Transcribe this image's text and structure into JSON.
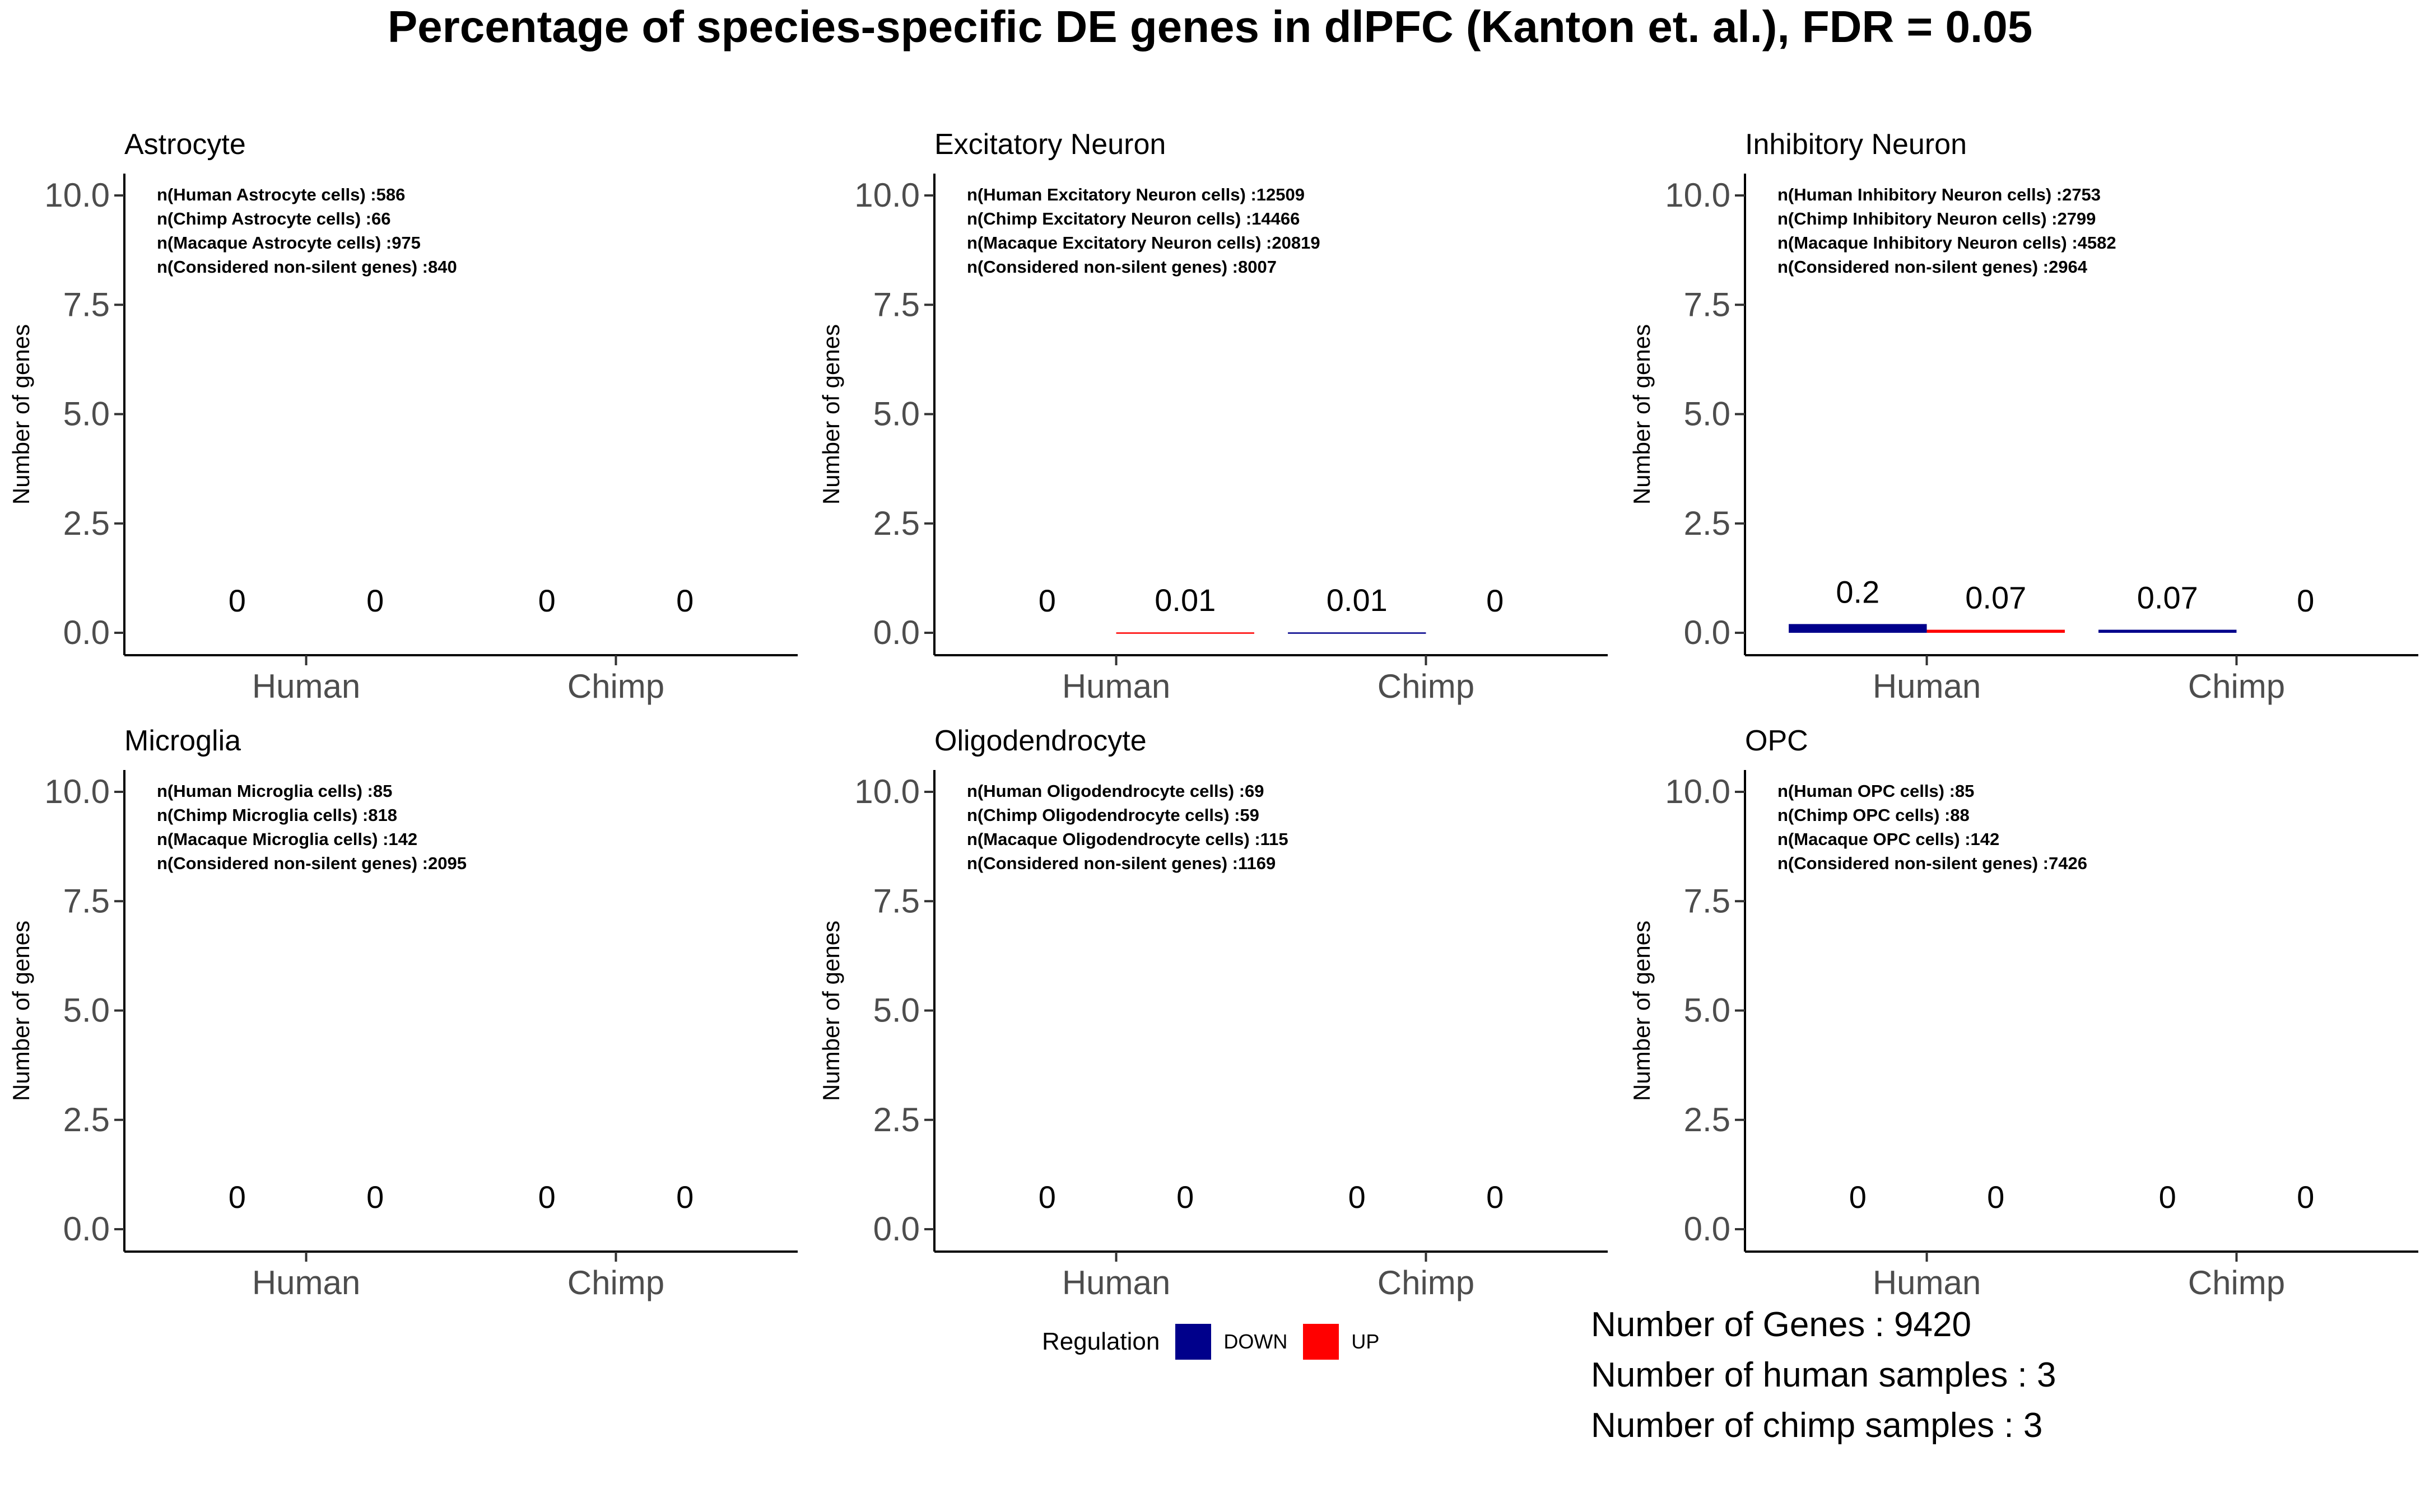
{
  "title": "Percentage of species-specific DE genes in dlPFC (Kanton et. al.), FDR = 0.05",
  "footer": {
    "lines": [
      "Number of Genes : 9420",
      "Number of human samples : 3",
      "Number of chimp samples : 3"
    ]
  },
  "legend": {
    "title": "Regulation",
    "items": [
      {
        "label": "DOWN",
        "color": "#00008B"
      },
      {
        "label": "UP",
        "color": "#FF0000"
      }
    ]
  },
  "chart_data": [
    {
      "type": "bar",
      "title": "Astrocyte",
      "ylabel": "Number of genes",
      "ylim": [
        0,
        10.5
      ],
      "yticks": [
        "0.0",
        "2.5",
        "5.0",
        "7.5",
        "10.0"
      ],
      "categories": [
        "Human",
        "Chimp"
      ],
      "series": [
        {
          "name": "DOWN",
          "values": [
            0,
            0
          ],
          "labels": [
            "0",
            "0"
          ]
        },
        {
          "name": "UP",
          "values": [
            0,
            0
          ],
          "labels": [
            "0",
            "0"
          ]
        }
      ],
      "annotations": [
        "n(Human Astrocyte cells) :586",
        "n(Chimp Astrocyte cells)  :66",
        "n(Macaque Astrocyte cells)  :975",
        "n(Considered non-silent genes) :840"
      ]
    },
    {
      "type": "bar",
      "title": "Excitatory Neuron",
      "ylabel": "Number of genes",
      "ylim": [
        0,
        10.5
      ],
      "yticks": [
        "0.0",
        "2.5",
        "5.0",
        "7.5",
        "10.0"
      ],
      "categories": [
        "Human",
        "Chimp"
      ],
      "series": [
        {
          "name": "DOWN",
          "values": [
            0,
            0.01
          ],
          "labels": [
            "0",
            "0.01"
          ]
        },
        {
          "name": "UP",
          "values": [
            0.01,
            0
          ],
          "labels": [
            "0.01",
            "0"
          ]
        }
      ],
      "annotations": [
        "n(Human Excitatory Neuron cells) :12509",
        "n(Chimp Excitatory Neuron cells)  :14466",
        "n(Macaque Excitatory Neuron cells)  :20819",
        "n(Considered non-silent genes) :8007"
      ]
    },
    {
      "type": "bar",
      "title": "Inhibitory Neuron",
      "ylabel": "Number of genes",
      "ylim": [
        0,
        10.5
      ],
      "yticks": [
        "0.0",
        "2.5",
        "5.0",
        "7.5",
        "10.0"
      ],
      "categories": [
        "Human",
        "Chimp"
      ],
      "series": [
        {
          "name": "DOWN",
          "values": [
            0.2,
            0.07
          ],
          "labels": [
            "0.2",
            "0.07"
          ]
        },
        {
          "name": "UP",
          "values": [
            0.07,
            0
          ],
          "labels": [
            "0.07",
            "0"
          ]
        }
      ],
      "annotations": [
        "n(Human Inhibitory Neuron cells) :2753",
        "n(Chimp Inhibitory Neuron cells)  :2799",
        "n(Macaque Inhibitory Neuron cells)  :4582",
        "n(Considered non-silent genes) :2964"
      ]
    },
    {
      "type": "bar",
      "title": "Microglia",
      "ylabel": "Number of genes",
      "ylim": [
        0,
        10.5
      ],
      "yticks": [
        "0.0",
        "2.5",
        "5.0",
        "7.5",
        "10.0"
      ],
      "categories": [
        "Human",
        "Chimp"
      ],
      "series": [
        {
          "name": "DOWN",
          "values": [
            0,
            0
          ],
          "labels": [
            "0",
            "0"
          ]
        },
        {
          "name": "UP",
          "values": [
            0,
            0
          ],
          "labels": [
            "0",
            "0"
          ]
        }
      ],
      "annotations": [
        "n(Human Microglia cells) :85",
        "n(Chimp Microglia cells)  :818",
        "n(Macaque Microglia cells)  :142",
        "n(Considered non-silent genes) :2095"
      ]
    },
    {
      "type": "bar",
      "title": "Oligodendrocyte",
      "ylabel": "Number of genes",
      "ylim": [
        0,
        10.5
      ],
      "yticks": [
        "0.0",
        "2.5",
        "5.0",
        "7.5",
        "10.0"
      ],
      "categories": [
        "Human",
        "Chimp"
      ],
      "series": [
        {
          "name": "DOWN",
          "values": [
            0,
            0
          ],
          "labels": [
            "0",
            "0"
          ]
        },
        {
          "name": "UP",
          "values": [
            0,
            0
          ],
          "labels": [
            "0",
            "0"
          ]
        }
      ],
      "annotations": [
        "n(Human Oligodendrocyte cells) :69",
        "n(Chimp Oligodendrocyte cells)  :59",
        "n(Macaque Oligodendrocyte cells)  :115",
        "n(Considered non-silent genes) :1169"
      ]
    },
    {
      "type": "bar",
      "title": "OPC",
      "ylabel": "Number of genes",
      "ylim": [
        0,
        10.5
      ],
      "yticks": [
        "0.0",
        "2.5",
        "5.0",
        "7.5",
        "10.0"
      ],
      "categories": [
        "Human",
        "Chimp"
      ],
      "series": [
        {
          "name": "DOWN",
          "values": [
            0,
            0
          ],
          "labels": [
            "0",
            "0"
          ]
        },
        {
          "name": "UP",
          "values": [
            0,
            0
          ],
          "labels": [
            "0",
            "0"
          ]
        }
      ],
      "annotations": [
        "n(Human OPC cells) :85",
        "n(Chimp OPC cells)  :88",
        "n(Macaque OPC cells)  :142",
        "n(Considered non-silent genes) :7426"
      ]
    }
  ]
}
